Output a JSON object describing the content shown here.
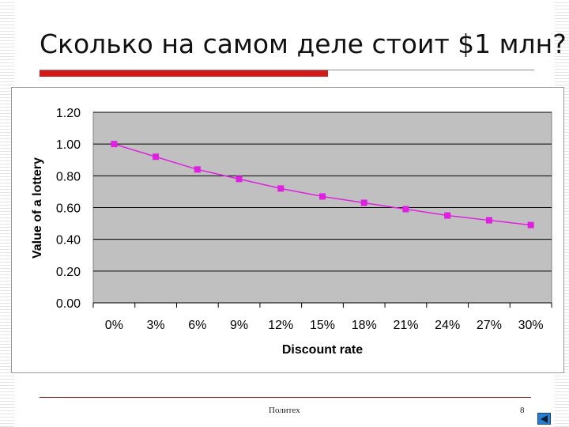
{
  "slide": {
    "title": "Сколько на самом деле стоит $1 млн?",
    "footer_left": "Политех",
    "page_number": "8"
  },
  "colors": {
    "accent_red": "#d21a1a",
    "plot_background": "#c0c0c0",
    "series_color": "#e020e0"
  },
  "icons": {
    "nav": "back-arrow-icon"
  },
  "chart_data": {
    "type": "line",
    "title": "",
    "xlabel": "Discount rate",
    "ylabel": "Value of a lottery",
    "categories": [
      "0%",
      "3%",
      "6%",
      "9%",
      "12%",
      "15%",
      "18%",
      "21%",
      "24%",
      "27%",
      "30%"
    ],
    "series": [
      {
        "values": [
          1.0,
          0.92,
          0.84,
          0.78,
          0.72,
          0.67,
          0.63,
          0.59,
          0.55,
          0.52,
          0.49
        ]
      }
    ],
    "y_ticks": [
      "0.00",
      "0.20",
      "0.40",
      "0.60",
      "0.80",
      "1.00",
      "1.20"
    ],
    "ylim": [
      0,
      1.2
    ],
    "grid": true,
    "legend": "none",
    "marker": "square"
  }
}
